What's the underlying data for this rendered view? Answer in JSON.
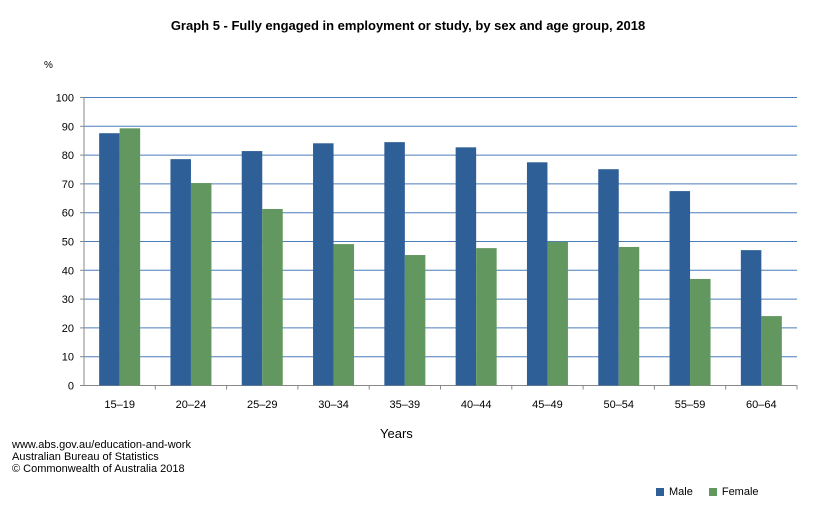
{
  "chart_data": {
    "type": "bar",
    "title": "Graph 5 - Fully engaged in employment or study,  by sex and age group, 2018",
    "ylabel": "%",
    "xlabel": "Years",
    "ylim": [
      0,
      100
    ],
    "yticks": [
      0,
      10,
      20,
      30,
      40,
      50,
      60,
      70,
      80,
      90,
      100
    ],
    "grid": true,
    "legend_position": "bottom-right",
    "categories": [
      "15–19",
      "20–24",
      "25–29",
      "30–34",
      "35–39",
      "40–44",
      "45–49",
      "50–54",
      "55–59",
      "60–64"
    ],
    "series": [
      {
        "name": "Male",
        "color": "#2E5F96",
        "values": [
          87.6,
          78.6,
          81.4,
          84.1,
          84.5,
          82.7,
          77.5,
          75.1,
          67.5,
          47.0
        ]
      },
      {
        "name": "Female",
        "color": "#62985F",
        "values": [
          89.3,
          70.3,
          61.3,
          49.1,
          45.3,
          47.7,
          49.9,
          48.1,
          37.0,
          24.1
        ]
      }
    ]
  },
  "source": {
    "line1": "www.abs.gov.au/education-and-work",
    "line2": "Australian Bureau of Statistics",
    "line3": "© Commonwealth of Australia 2018"
  },
  "colors": {
    "gridline": "#4A7EBB"
  }
}
